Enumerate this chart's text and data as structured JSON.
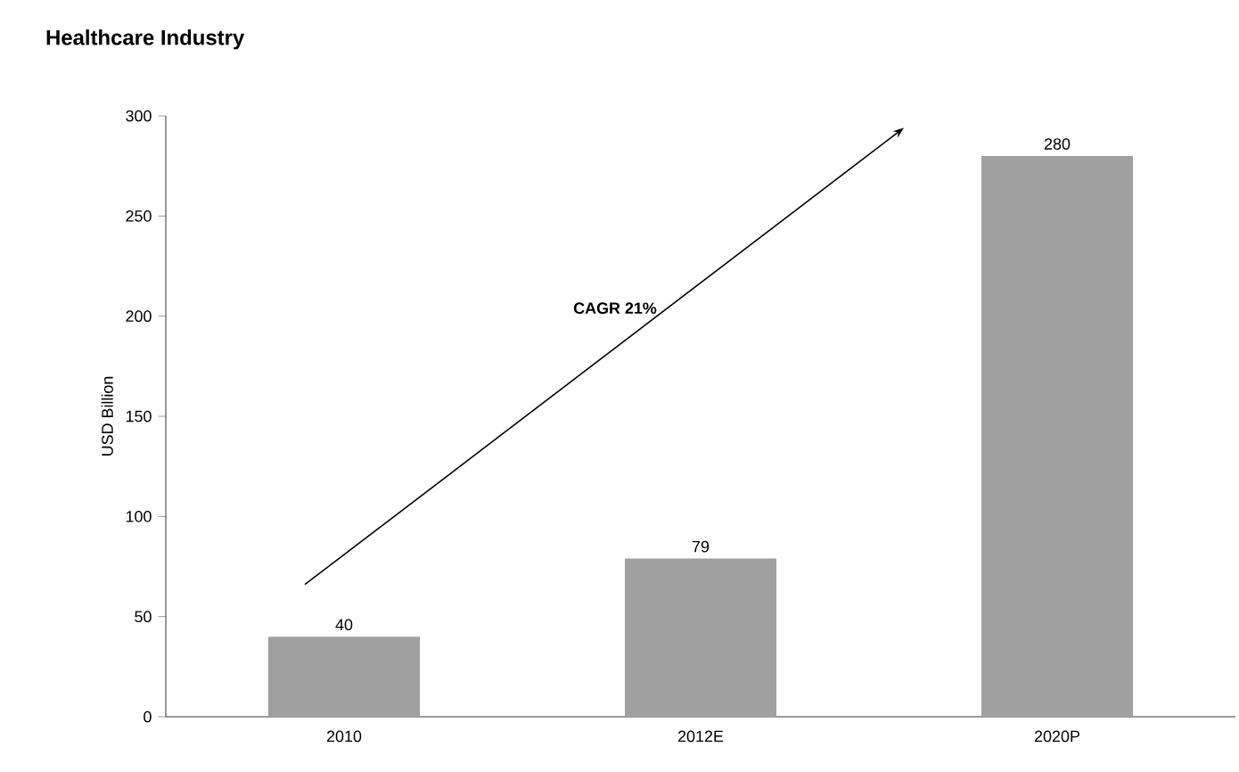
{
  "chart_data": {
    "type": "bar",
    "title": "Healthcare Industry",
    "ylabel": "USD Billion",
    "categories": [
      "2010",
      "2012E",
      "2020P"
    ],
    "values": [
      40,
      79,
      280
    ],
    "color": "#a0a0a0",
    "ylim": [
      0,
      300
    ],
    "yticks": [
      0,
      50,
      100,
      150,
      200,
      250,
      300
    ],
    "data_labels": true,
    "annotations": [
      "CAGR 21%"
    ]
  }
}
